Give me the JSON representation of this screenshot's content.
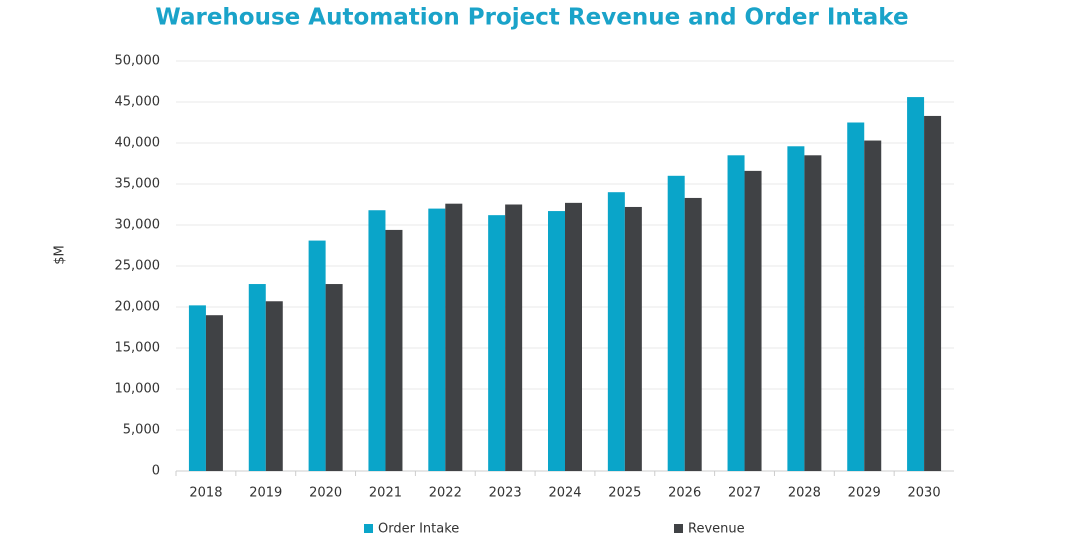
{
  "chart_data": {
    "type": "bar",
    "title": "Warehouse Automation Project Revenue and Order Intake",
    "y_label": "$M",
    "categories": [
      "2018",
      "2019",
      "2020",
      "2021",
      "2022",
      "2023",
      "2024",
      "2025",
      "2026",
      "2027",
      "2028",
      "2029",
      "2030"
    ],
    "series": [
      {
        "name": "Order Intake",
        "color": "#0aa5c9",
        "values": [
          20200,
          22800,
          28100,
          31800,
          32000,
          31200,
          31700,
          34000,
          36000,
          38500,
          39600,
          42500,
          45600
        ]
      },
      {
        "name": "Revenue",
        "color": "#404245",
        "values": [
          19000,
          20700,
          22800,
          29400,
          32600,
          32500,
          32700,
          32200,
          33300,
          36600,
          38500,
          40300,
          43300
        ]
      }
    ],
    "ylim": [
      0,
      50000
    ],
    "yticks": [
      0,
      {
        "value": 5000,
        "label": "5,000"
      },
      {
        "value": 10000,
        "label": "10,000"
      },
      {
        "value": 15000,
        "label": "15,000"
      },
      {
        "value": 20000,
        "label": "20,000"
      },
      {
        "value": 25000,
        "label": "25,000"
      },
      {
        "value": 30000,
        "label": "30,000"
      },
      {
        "value": 35000,
        "label": "35,000"
      },
      {
        "value": 40000,
        "label": "40,000"
      },
      {
        "value": 45000,
        "label": "45,000"
      },
      {
        "value": 50000,
        "label": "50,000"
      }
    ],
    "grid": true,
    "legend": "bottom"
  }
}
